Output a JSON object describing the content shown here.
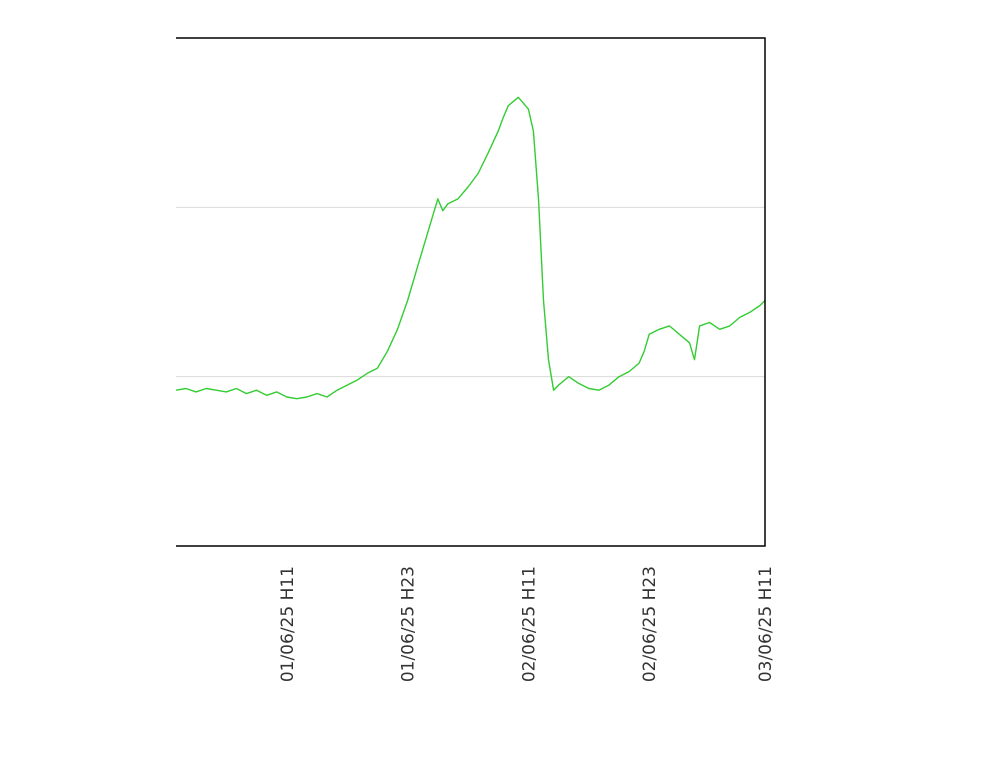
{
  "chart_data": {
    "type": "line",
    "title": "",
    "xlabel": "",
    "ylabel": "",
    "x_tick_labels": [
      "01/06/25 H11",
      "01/06/25 H23",
      "02/06/25 H11",
      "02/06/25 H23",
      "03/06/25 H11"
    ],
    "x_range_hours": [
      0,
      58.5
    ],
    "x_tick_hours": [
      11,
      23,
      35,
      47,
      59
    ],
    "ylim": [
      0,
      3
    ],
    "gridlines_y": [
      1,
      2
    ],
    "grid": true,
    "series": [
      {
        "name": "",
        "color": "#33cc33",
        "x": [
          0,
          1,
          2,
          3,
          4,
          5,
          6,
          7,
          8,
          9,
          10,
          11,
          12,
          13,
          14,
          15,
          16,
          17,
          18,
          19,
          20,
          21,
          22,
          23,
          24,
          25,
          26,
          26.5,
          27,
          28,
          29,
          30,
          31,
          32,
          32.5,
          33,
          34,
          35,
          35.5,
          36,
          36.5,
          37,
          37.5,
          38,
          39,
          40,
          41,
          42,
          43,
          44,
          45,
          46,
          46.5,
          47,
          48,
          49,
          50,
          51,
          51.5,
          52,
          53,
          54,
          55,
          56,
          57,
          58,
          58.5
        ],
        "y": [
          0.92,
          0.93,
          0.91,
          0.93,
          0.92,
          0.91,
          0.93,
          0.9,
          0.92,
          0.89,
          0.91,
          0.88,
          0.87,
          0.88,
          0.9,
          0.88,
          0.92,
          0.95,
          0.98,
          1.02,
          1.05,
          1.15,
          1.28,
          1.45,
          1.65,
          1.85,
          2.05,
          1.98,
          2.02,
          2.05,
          2.12,
          2.2,
          2.32,
          2.45,
          2.53,
          2.6,
          2.65,
          2.58,
          2.45,
          2.05,
          1.45,
          1.1,
          0.92,
          0.95,
          1.0,
          0.96,
          0.93,
          0.92,
          0.95,
          1.0,
          1.03,
          1.08,
          1.15,
          1.25,
          1.28,
          1.3,
          1.25,
          1.2,
          1.1,
          1.3,
          1.32,
          1.28,
          1.3,
          1.35,
          1.38,
          1.42,
          1.45
        ]
      }
    ]
  }
}
